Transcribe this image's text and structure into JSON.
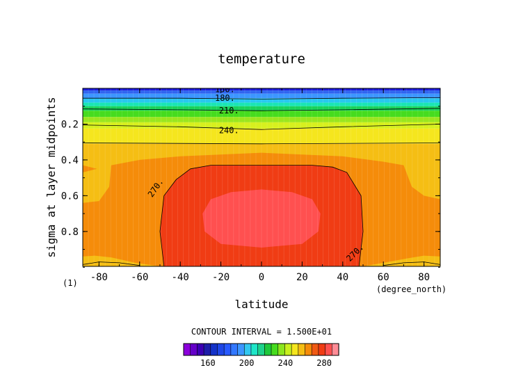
{
  "chart_data": {
    "type": "heatmap",
    "title": "temperature",
    "xlabel": "latitude",
    "ylabel": "sigma at layer midpoints",
    "x_units_label": "(degree_north)",
    "frame_label": "(1)",
    "xlim": [
      -88,
      88
    ],
    "ylim": [
      0.995,
      0.0
    ],
    "x_ticks": [
      -80,
      -60,
      -40,
      -20,
      0,
      20,
      40,
      60,
      80
    ],
    "x_tick_labels": [
      "-80",
      "-60",
      "-40",
      "-20",
      "0",
      "20",
      "40",
      "60",
      "80"
    ],
    "y_ticks": [
      0.2,
      0.4,
      0.6,
      0.8
    ],
    "y_tick_labels": [
      "0.2",
      "0.4",
      "0.6",
      "0.8"
    ],
    "contour_interval_text": "CONTOUR INTERVAL = 1.500E+01",
    "contour_labels": [
      {
        "text": "150.",
        "lat": -18,
        "sigma": 0.005
      },
      {
        "text": "180.",
        "lat": -18,
        "sigma": 0.055
      },
      {
        "text": "210.",
        "lat": -16,
        "sigma": 0.125
      },
      {
        "text": "240.",
        "lat": -16,
        "sigma": 0.235
      },
      {
        "text": "270.",
        "lat": -51,
        "sigma": 0.55
      },
      {
        "text": "270.",
        "lat": 47,
        "sigma": 0.915
      }
    ],
    "contours": [
      {
        "level": 150,
        "points": [
          [
            -88,
            0.0
          ],
          [
            88,
            0.0
          ]
        ]
      },
      {
        "level": 180,
        "points": [
          [
            -88,
            0.055
          ],
          [
            -40,
            0.055
          ],
          [
            0,
            0.06
          ],
          [
            40,
            0.055
          ],
          [
            88,
            0.052
          ]
        ]
      },
      {
        "level": 210,
        "points": [
          [
            -88,
            0.115
          ],
          [
            -40,
            0.12
          ],
          [
            0,
            0.125
          ],
          [
            40,
            0.12
          ],
          [
            88,
            0.112
          ]
        ]
      },
      {
        "level": 240,
        "points": [
          [
            -88,
            0.205
          ],
          [
            -40,
            0.215
          ],
          [
            0,
            0.23
          ],
          [
            40,
            0.215
          ],
          [
            88,
            0.2
          ]
        ]
      },
      {
        "level": 255,
        "points": [
          [
            -88,
            0.305
          ],
          [
            0,
            0.31
          ],
          [
            88,
            0.305
          ]
        ]
      },
      {
        "level": 270,
        "closed": true,
        "points": [
          [
            -48,
            0.995
          ],
          [
            -50,
            0.8
          ],
          [
            -48,
            0.6
          ],
          [
            -42,
            0.51
          ],
          [
            -35,
            0.45
          ],
          [
            -25,
            0.43
          ],
          [
            0,
            0.43
          ],
          [
            25,
            0.43
          ],
          [
            35,
            0.44
          ],
          [
            42,
            0.47
          ],
          [
            49,
            0.6
          ],
          [
            50,
            0.8
          ],
          [
            48,
            0.995
          ]
        ]
      },
      {
        "level": 255,
        "points": [
          [
            -88,
            0.985
          ],
          [
            -80,
            0.97
          ],
          [
            -70,
            0.975
          ],
          [
            -60,
            0.99
          ]
        ]
      },
      {
        "level": 255,
        "points": [
          [
            60,
            0.99
          ],
          [
            70,
            0.975
          ],
          [
            80,
            0.97
          ],
          [
            88,
            0.985
          ]
        ]
      }
    ],
    "fill_bands": [
      {
        "level": 150,
        "color": "#1a1adc",
        "points": [
          [
            -88,
            0.0
          ],
          [
            88,
            0.0
          ],
          [
            88,
            0.012
          ],
          [
            -88,
            0.012
          ]
        ]
      },
      {
        "level": 165,
        "color": "#2f64f0",
        "points": [
          [
            -88,
            0.012
          ],
          [
            88,
            0.012
          ],
          [
            88,
            0.03
          ],
          [
            -88,
            0.03
          ]
        ]
      },
      {
        "level": 172,
        "color": "#3c96ff",
        "points": [
          [
            -88,
            0.03
          ],
          [
            88,
            0.03
          ],
          [
            88,
            0.055
          ],
          [
            -88,
            0.055
          ]
        ]
      },
      {
        "level": 185,
        "color": "#28c8f0",
        "points": [
          [
            -88,
            0.055
          ],
          [
            88,
            0.055
          ],
          [
            88,
            0.08
          ],
          [
            -88,
            0.08
          ]
        ]
      },
      {
        "level": 195,
        "color": "#19e6b4",
        "points": [
          [
            -88,
            0.08
          ],
          [
            88,
            0.08
          ],
          [
            88,
            0.1
          ],
          [
            -88,
            0.1
          ]
        ]
      },
      {
        "level": 205,
        "color": "#19d25a",
        "points": [
          [
            -88,
            0.1
          ],
          [
            88,
            0.1
          ],
          [
            88,
            0.125
          ],
          [
            -88,
            0.125
          ]
        ]
      },
      {
        "level": 215,
        "color": "#46dc1e",
        "points": [
          [
            -88,
            0.125
          ],
          [
            88,
            0.125
          ],
          [
            88,
            0.16
          ],
          [
            -88,
            0.16
          ]
        ]
      },
      {
        "level": 225,
        "color": "#9be61e",
        "points": [
          [
            -88,
            0.16
          ],
          [
            88,
            0.16
          ],
          [
            88,
            0.19
          ],
          [
            -88,
            0.19
          ]
        ]
      },
      {
        "level": 235,
        "color": "#d7f01e",
        "points": [
          [
            -88,
            0.19
          ],
          [
            88,
            0.19
          ],
          [
            88,
            0.225
          ],
          [
            -88,
            0.225
          ]
        ]
      },
      {
        "level": 245,
        "color": "#f5e61e",
        "points": [
          [
            -88,
            0.225
          ],
          [
            88,
            0.225
          ],
          [
            88,
            0.31
          ],
          [
            -88,
            0.31
          ]
        ]
      },
      {
        "level": 255,
        "color": "#f5be14",
        "points": [
          [
            -88,
            0.31
          ],
          [
            88,
            0.31
          ],
          [
            88,
            0.995
          ],
          [
            -88,
            0.995
          ]
        ]
      },
      {
        "level": 262,
        "color": "#f58c0a",
        "points": [
          [
            -88,
            0.64
          ],
          [
            -80,
            0.63
          ],
          [
            -75,
            0.55
          ],
          [
            -74,
            0.43
          ],
          [
            -60,
            0.4
          ],
          [
            -40,
            0.38
          ],
          [
            0,
            0.36
          ],
          [
            40,
            0.38
          ],
          [
            60,
            0.41
          ],
          [
            70,
            0.43
          ],
          [
            74,
            0.55
          ],
          [
            80,
            0.6
          ],
          [
            84,
            0.61
          ],
          [
            88,
            0.62
          ],
          [
            88,
            0.94
          ],
          [
            80,
            0.935
          ],
          [
            72,
            0.95
          ],
          [
            60,
            0.975
          ],
          [
            50,
            0.995
          ],
          [
            -50,
            0.995
          ],
          [
            -62,
            0.975
          ],
          [
            -74,
            0.945
          ],
          [
            -82,
            0.935
          ],
          [
            -88,
            0.94
          ]
        ]
      },
      {
        "level": 262,
        "color": "#f58c0a",
        "points": [
          [
            -88,
            0.43
          ],
          [
            -81,
            0.45
          ],
          [
            -88,
            0.47
          ]
        ]
      },
      {
        "level": 275,
        "color": "#f03c14",
        "points": [
          [
            -48,
            0.995
          ],
          [
            -50,
            0.8
          ],
          [
            -48,
            0.6
          ],
          [
            -42,
            0.51
          ],
          [
            -35,
            0.45
          ],
          [
            -25,
            0.43
          ],
          [
            0,
            0.43
          ],
          [
            25,
            0.43
          ],
          [
            35,
            0.44
          ],
          [
            42,
            0.47
          ],
          [
            49,
            0.6
          ],
          [
            50,
            0.8
          ],
          [
            48,
            0.995
          ]
        ]
      },
      {
        "level": 285,
        "color": "#ff5050",
        "points": [
          [
            -28,
            0.8
          ],
          [
            -29,
            0.7
          ],
          [
            -25,
            0.62
          ],
          [
            -15,
            0.58
          ],
          [
            0,
            0.565
          ],
          [
            15,
            0.58
          ],
          [
            25,
            0.62
          ],
          [
            29,
            0.7
          ],
          [
            28,
            0.8
          ],
          [
            20,
            0.87
          ],
          [
            0,
            0.89
          ],
          [
            -20,
            0.87
          ]
        ]
      }
    ],
    "colorbar": {
      "colors": [
        "#8c00dc",
        "#6400c8",
        "#3c00b4",
        "#1e1eaa",
        "#1432c8",
        "#1e46e6",
        "#285aff",
        "#3278ff",
        "#3c96ff",
        "#32c8f0",
        "#1ee6c8",
        "#1ed28c",
        "#1ec83c",
        "#46dc1e",
        "#8ce61e",
        "#c8f01e",
        "#f5e61e",
        "#f5be14",
        "#f58c0a",
        "#f05a14",
        "#f03c14",
        "#ff5050",
        "#ff8c96"
      ],
      "tick_values": [
        160,
        200,
        240,
        280
      ],
      "tick_labels": [
        "160",
        "200",
        "240",
        "280"
      ],
      "range": [
        135,
        295
      ]
    }
  }
}
